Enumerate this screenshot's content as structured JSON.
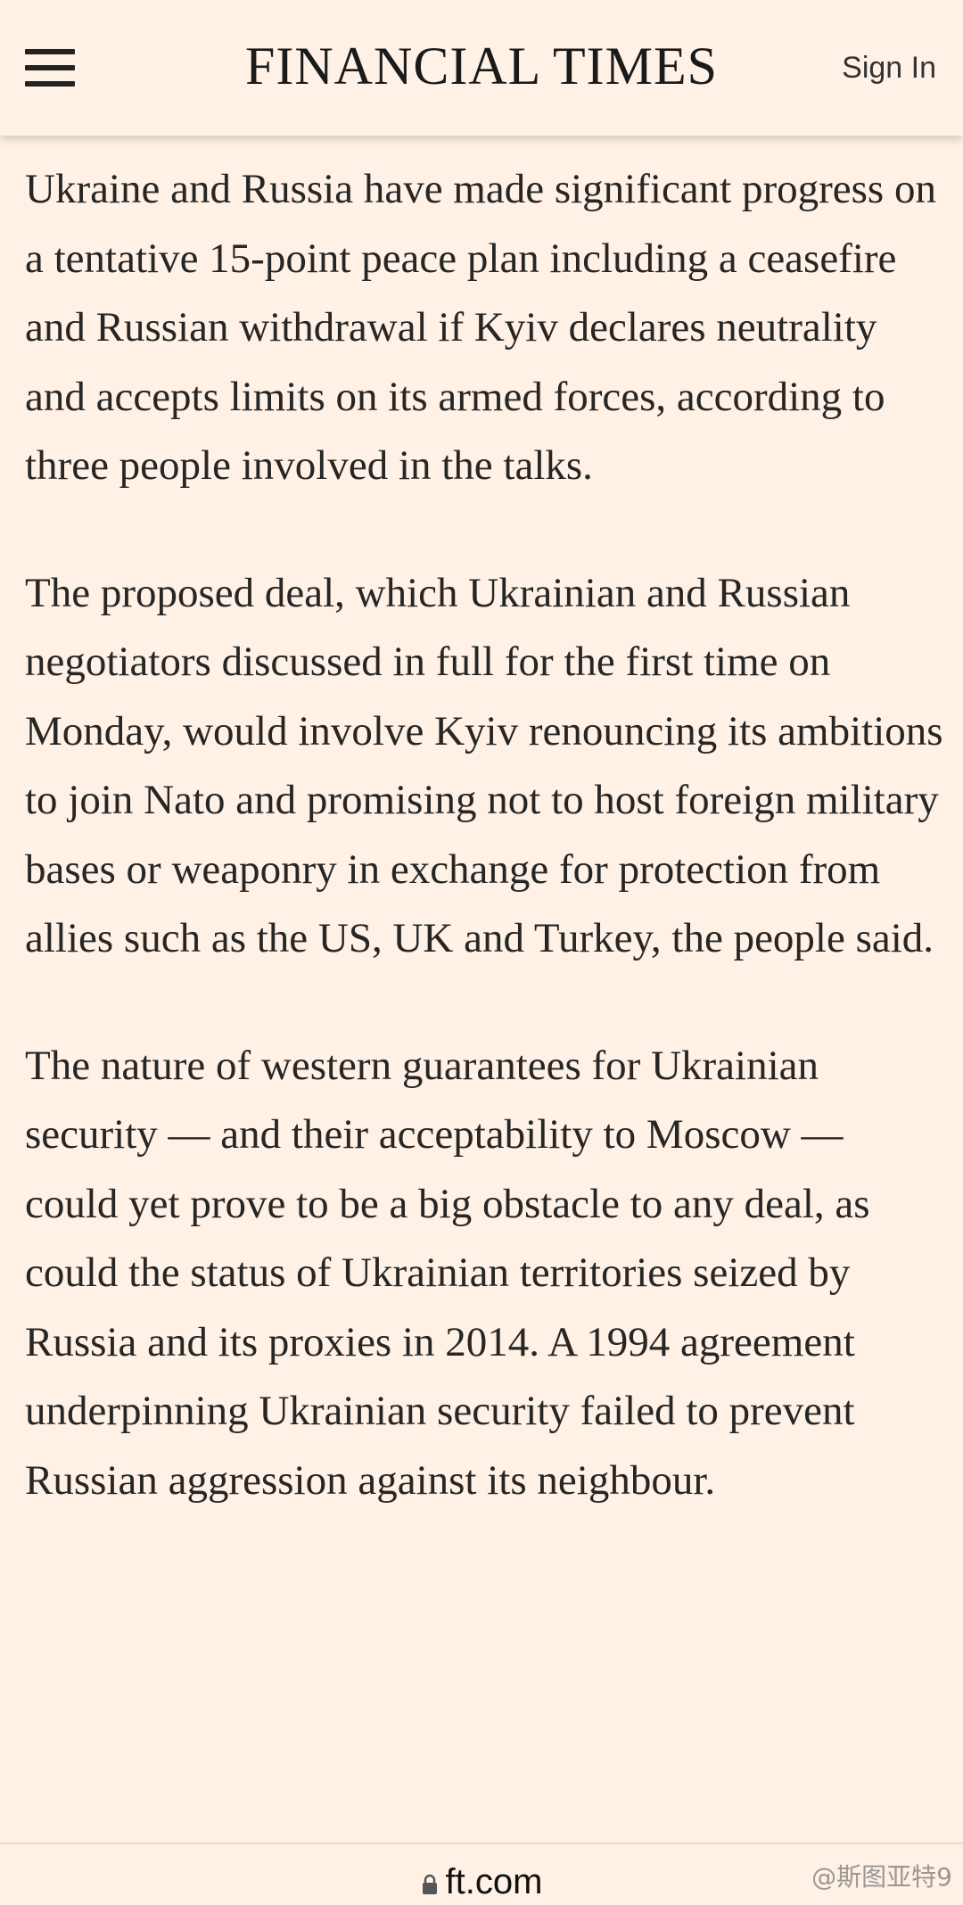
{
  "header": {
    "masthead": "FINANCIAL TIMES",
    "sign_in_label": "Sign In",
    "menu_icon": "hamburger-menu-icon"
  },
  "article": {
    "paragraphs": [
      "Ukraine and Russia have made significant progress on a tentative 15-point peace plan including a ceasefire and Russian withdrawal if Kyiv declares neutrality and accepts limits on its armed forces, according to three people involved in the talks.",
      "The proposed deal, which Ukrainian and Russian negotiators discussed in full for the first time on Monday, would involve Kyiv renouncing its ambitions to join Nato and promising not to host foreign military bases or weaponry in exchange for protection from allies such as the US, UK and Turkey, the people said.",
      "The nature of western guarantees for Ukrainian security — and their acceptability to Moscow — could yet prove to be a big obstacle to any deal, as could the status of Ukrainian territories seized by Russia and its proxies in 2014. A 1994 agreement underpinning Ukrainian security failed to prevent Russian aggression against its neighbour."
    ]
  },
  "browser": {
    "url": "ft.com",
    "lock_icon": "lock-icon"
  },
  "watermark": "@斯图亚特9",
  "colors": {
    "background": "#FFF1E5",
    "text": "#262626"
  }
}
